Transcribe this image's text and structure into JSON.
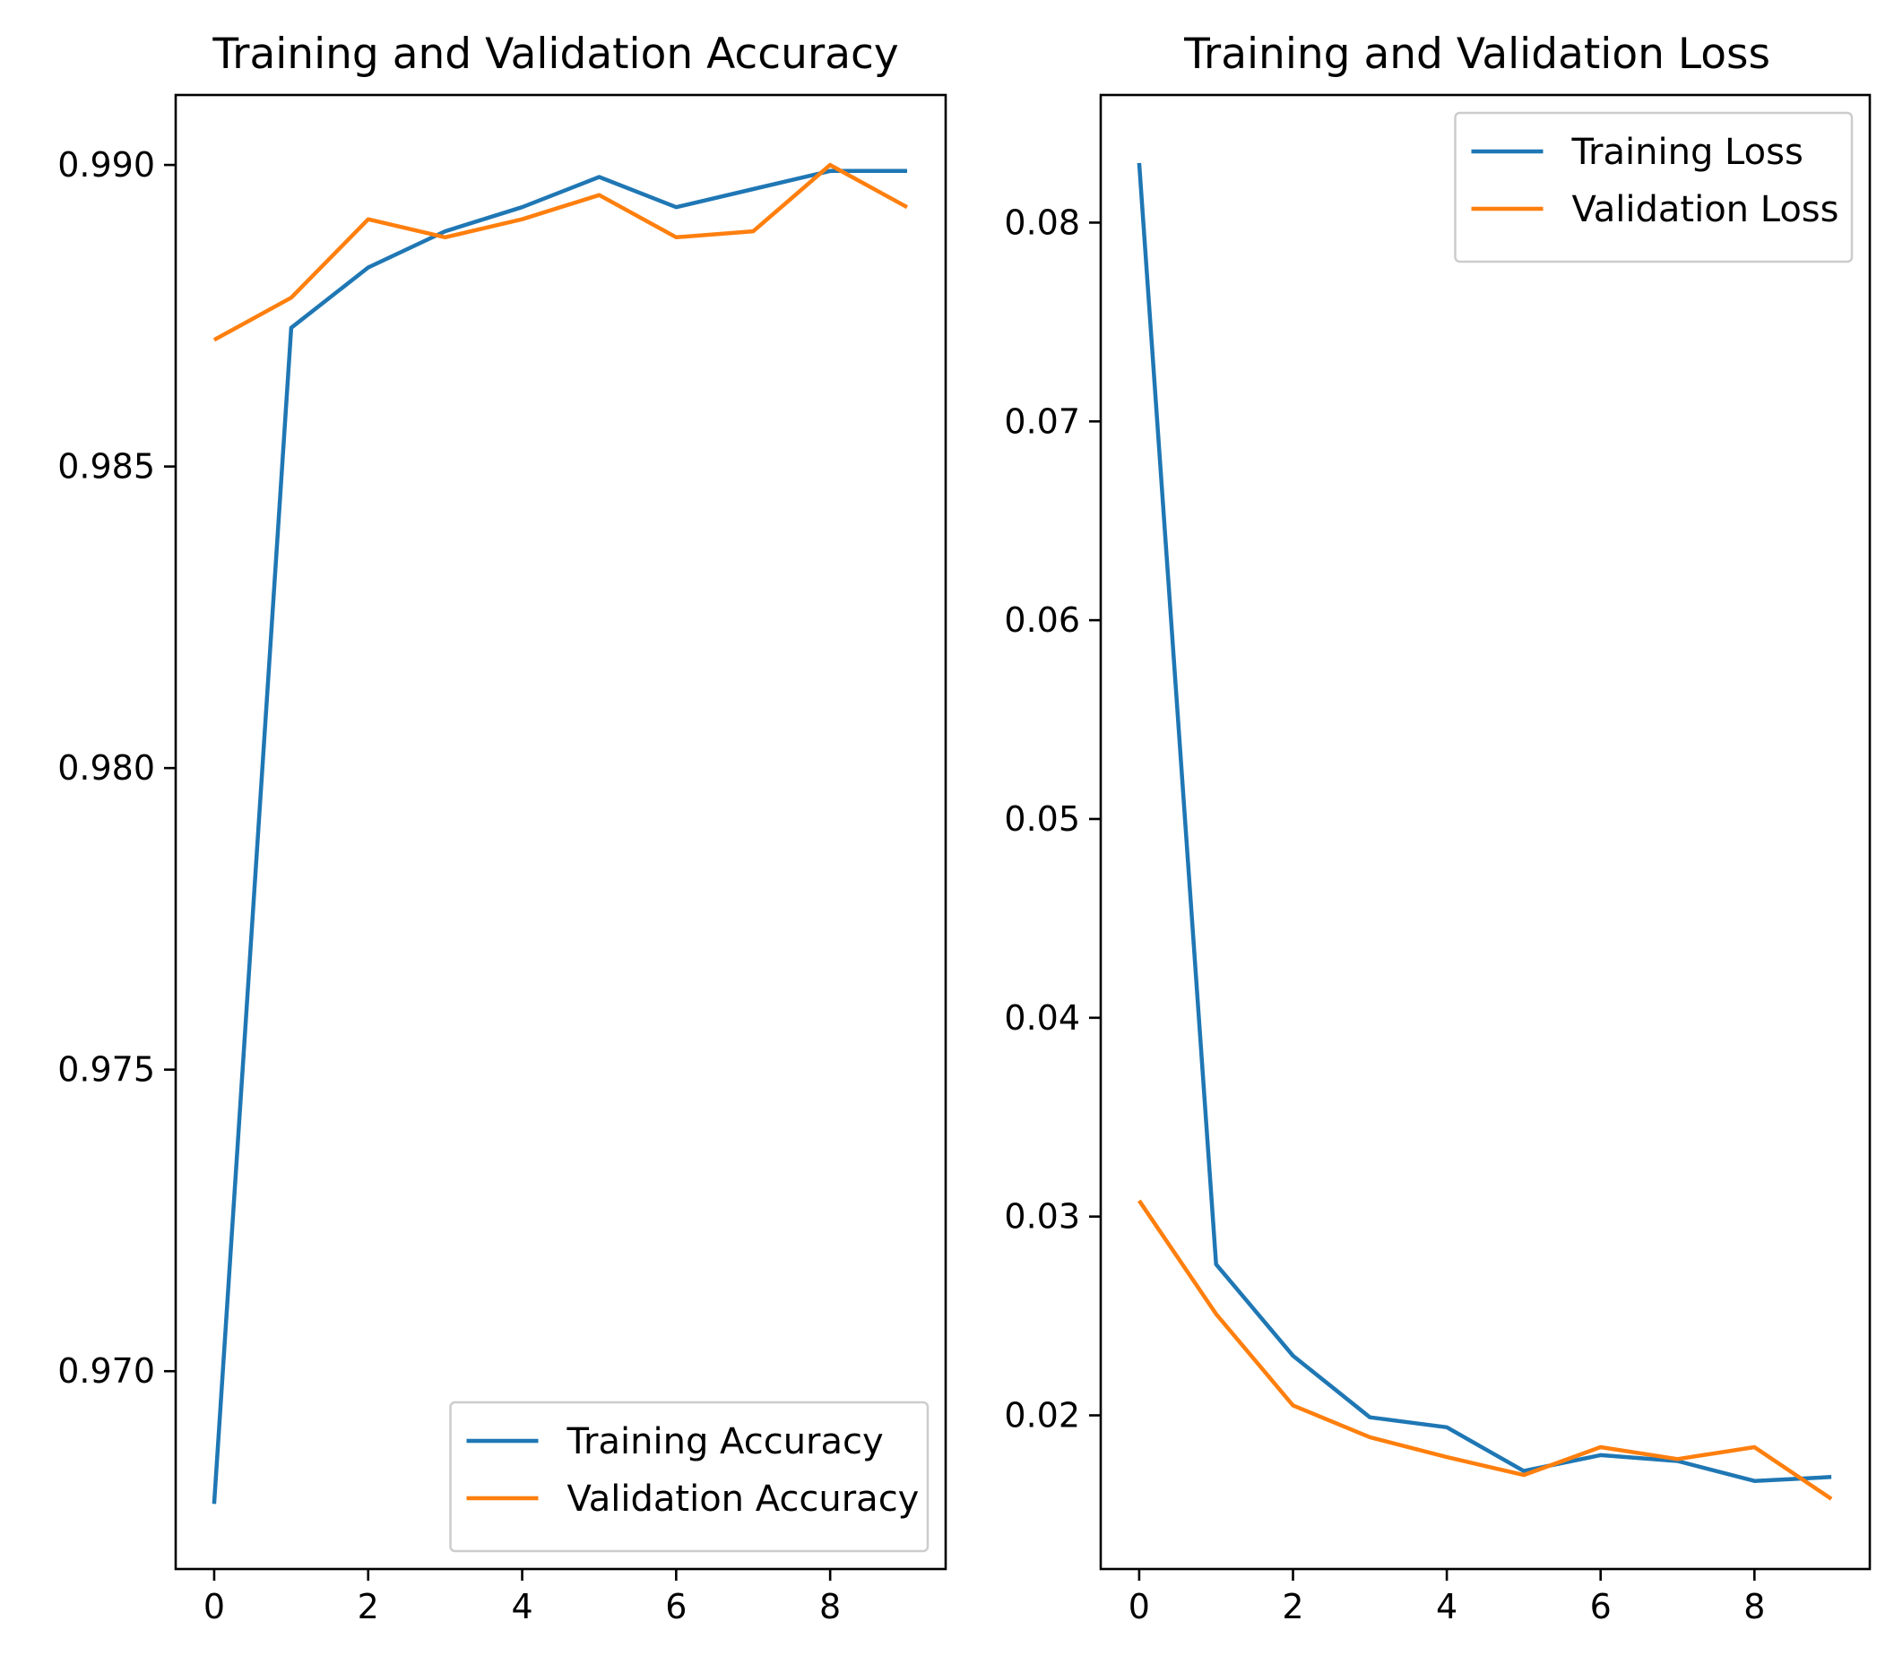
{
  "chart_data": [
    {
      "type": "line",
      "title": "Training and Validation Accuracy",
      "xlabel": "",
      "ylabel": "",
      "x": [
        0,
        1,
        2,
        3,
        4,
        5,
        6,
        7,
        8,
        9
      ],
      "xlim": [
        -0.5,
        9.5
      ],
      "ylim": [
        0.96672,
        0.99116
      ],
      "xticks": [
        0,
        2,
        4,
        6,
        8
      ],
      "yticks": [
        0.97,
        0.975,
        0.98,
        0.985,
        0.99
      ],
      "xtick_labels": [
        "0",
        "2",
        "4",
        "6",
        "8"
      ],
      "ytick_labels": [
        "0.970",
        "0.975",
        "0.980",
        "0.985",
        "0.990"
      ],
      "legend_loc": "lower-right",
      "grid": false,
      "series": [
        {
          "name": "Training Accuracy",
          "color": "#1f77b4",
          "values": [
            0.9678,
            0.9873,
            0.9883,
            0.9889,
            0.9893,
            0.9898,
            0.9893,
            0.9896,
            0.9899,
            0.9899
          ]
        },
        {
          "name": "Validation Accuracy",
          "color": "#ff7f0e",
          "values": [
            0.9871,
            0.9878,
            0.9891,
            0.9888,
            0.9891,
            0.9895,
            0.9888,
            0.9889,
            0.99,
            0.9893
          ]
        }
      ]
    },
    {
      "type": "line",
      "title": "Training and Validation Loss",
      "xlabel": "",
      "ylabel": "",
      "x": [
        0,
        1,
        2,
        3,
        4,
        5,
        6,
        7,
        8,
        9
      ],
      "xlim": [
        -0.5,
        9.5
      ],
      "ylim": [
        0.01227,
        0.08642
      ],
      "xticks": [
        0,
        2,
        4,
        6,
        8
      ],
      "yticks": [
        0.02,
        0.03,
        0.04,
        0.05,
        0.06,
        0.07,
        0.08
      ],
      "xtick_labels": [
        "0",
        "2",
        "4",
        "6",
        "8"
      ],
      "ytick_labels": [
        "0.02",
        "0.03",
        "0.04",
        "0.05",
        "0.06",
        "0.07",
        "0.08"
      ],
      "legend_loc": "upper-right",
      "grid": false,
      "series": [
        {
          "name": "Training Loss",
          "color": "#1f77b4",
          "values": [
            0.083,
            0.0276,
            0.023,
            0.0199,
            0.0194,
            0.0172,
            0.018,
            0.0177,
            0.0167,
            0.0169
          ]
        },
        {
          "name": "Validation Loss",
          "color": "#ff7f0e",
          "values": [
            0.0308,
            0.0251,
            0.0205,
            0.0189,
            0.0179,
            0.017,
            0.0184,
            0.0178,
            0.0184,
            0.0158
          ]
        }
      ]
    }
  ]
}
